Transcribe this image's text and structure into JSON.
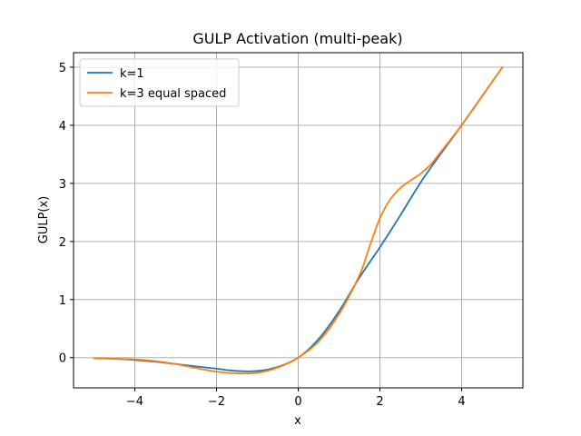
{
  "chart_data": {
    "type": "line",
    "title": "GULP Activation (multi-peak)",
    "xlabel": "x",
    "ylabel": "GULP(x)",
    "xlim": [
      -5.5,
      5.5
    ],
    "ylim": [
      -0.52,
      5.25
    ],
    "x_ticks": [
      -4,
      -2,
      0,
      2,
      4
    ],
    "x_tick_labels": [
      "−4",
      "−2",
      "0",
      "2",
      "4"
    ],
    "y_ticks": [
      0,
      1,
      2,
      3,
      4,
      5
    ],
    "y_tick_labels": [
      "0",
      "1",
      "2",
      "3",
      "4",
      "5"
    ],
    "grid": true,
    "legend_position": "top-left",
    "series": [
      {
        "name": "k=1",
        "color": "#1f77b4",
        "x": [
          -5,
          -4.5,
          -4,
          -3.5,
          -3,
          -2.5,
          -2,
          -1.5,
          -1,
          -0.5,
          0,
          0.5,
          1,
          1.5,
          2,
          2.5,
          3,
          3.5,
          4,
          4.5,
          5
        ],
        "y": [
          -0.01,
          -0.02,
          -0.04,
          -0.07,
          -0.11,
          -0.15,
          -0.19,
          -0.23,
          -0.23,
          -0.16,
          0.0,
          0.32,
          0.8,
          1.38,
          1.9,
          2.45,
          3.02,
          3.52,
          4.0,
          4.5,
          5.0
        ]
      },
      {
        "name": "k=3 equal spaced",
        "color": "#ff7f0e",
        "x": [
          -5,
          -4.5,
          -4,
          -3.5,
          -3,
          -2.5,
          -2,
          -1.5,
          -1,
          -0.5,
          0,
          0.5,
          1,
          1.5,
          1.75,
          2,
          2.25,
          2.5,
          2.75,
          3,
          3.25,
          3.5,
          4,
          4.5,
          5
        ],
        "y": [
          -0.01,
          -0.02,
          -0.03,
          -0.06,
          -0.11,
          -0.18,
          -0.24,
          -0.27,
          -0.26,
          -0.17,
          0.0,
          0.28,
          0.75,
          1.42,
          1.92,
          2.4,
          2.72,
          2.92,
          3.05,
          3.17,
          3.33,
          3.55,
          4.0,
          4.5,
          5.0
        ]
      }
    ]
  }
}
